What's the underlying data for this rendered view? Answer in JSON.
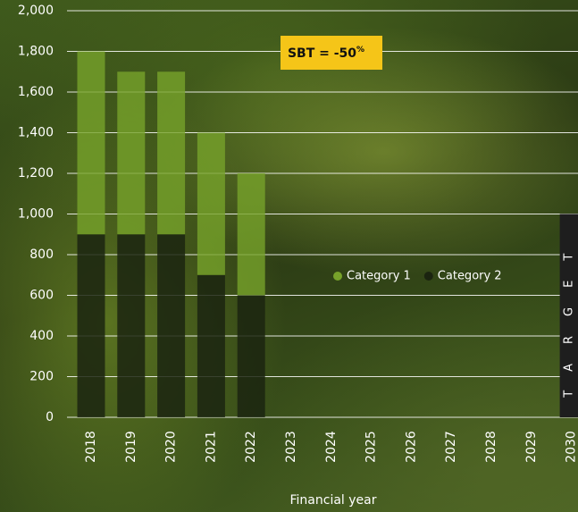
{
  "chart_data": {
    "type": "stacked_bar",
    "x_label": "Financial year",
    "categories": [
      "2018",
      "2019",
      "2020",
      "2021",
      "2022",
      "2023",
      "2024",
      "2025",
      "2026",
      "2027",
      "2028",
      "2029",
      "2030"
    ],
    "series": [
      {
        "name": "Category 2",
        "color": "#1b2410",
        "values": [
          900,
          900,
          900,
          700,
          600,
          null,
          null,
          null,
          null,
          null,
          null,
          null,
          null
        ]
      },
      {
        "name": "Category 1",
        "color": "#77a22a",
        "values": [
          900,
          800,
          800,
          700,
          600,
          null,
          null,
          null,
          null,
          null,
          null,
          null,
          null
        ]
      }
    ],
    "legend_order": [
      1,
      0
    ],
    "target": {
      "label": "TARGET",
      "value": 1000,
      "category": 12,
      "color": "#1e1e1e"
    },
    "annotation": {
      "text": "SBT = -50",
      "sup": "%"
    },
    "ylim": [
      0,
      2000
    ],
    "yticks": [
      0,
      200,
      400,
      600,
      800,
      1000,
      1200,
      1400,
      1600,
      1800,
      {
        "value": 1000,
        "label": "1,000"
      },
      {
        "value": 1200,
        "label": "1,200"
      },
      {
        "value": 1400,
        "label": "1,400"
      },
      {
        "value": 1600,
        "label": "1,600"
      },
      {
        "value": 1800,
        "label": "1,800"
      },
      {
        "value": 2000,
        "label": "2,000"
      }
    ],
    "grid": true
  }
}
